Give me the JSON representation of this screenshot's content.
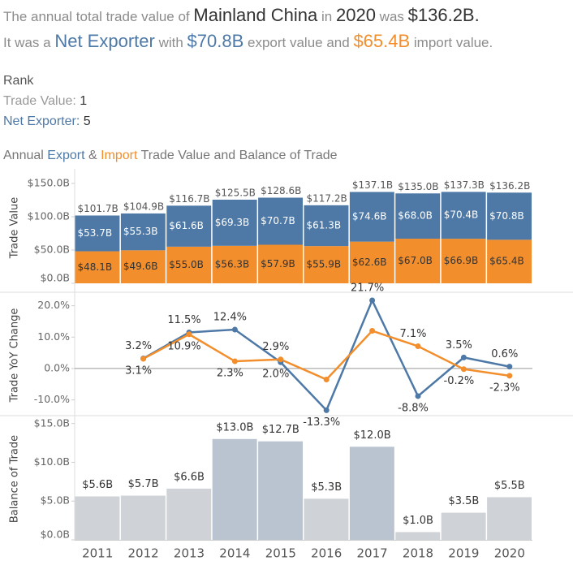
{
  "header": {
    "line1": [
      "The annual total trade value of",
      "Mainland China",
      "in",
      "2020",
      "was",
      "$136.2B."
    ],
    "line2": [
      "It was a",
      "Net Exporter",
      "with",
      "$70.8B",
      "export value and",
      "$65.4B",
      "import value."
    ]
  },
  "rank": {
    "title": "Rank",
    "items": [
      {
        "label": "Trade Value:",
        "value": "1"
      },
      {
        "label": "Net Exporter:",
        "value": "5"
      }
    ]
  },
  "chart_title": [
    "Annual",
    "Export",
    "&",
    "Import",
    "Trade Value and Balance of Trade"
  ],
  "chart_data": [
    {
      "type": "bar",
      "stacked": true,
      "y_label": "Trade Value",
      "ylim": [
        0,
        167
      ],
      "yticks": [
        {
          "value": 0,
          "label": "$0.0B"
        },
        {
          "value": 50,
          "label": "$50.0B"
        },
        {
          "value": 100,
          "label": "$100.0B"
        },
        {
          "value": 150,
          "label": "$150.0B"
        }
      ],
      "series": [
        {
          "color": "#f28e2b",
          "label_color": "#333333",
          "values": [
            48.1,
            49.6,
            55.0,
            56.3,
            57.9,
            55.9,
            62.6,
            67.0,
            66.9,
            65.4
          ],
          "value_labels": [
            "$48.1B",
            "$49.6B",
            "$55.0B",
            "$56.3B",
            "$57.9B",
            "$55.9B",
            "$62.6B",
            "$67.0B",
            "$66.9B",
            "$65.4B"
          ]
        },
        {
          "color": "#4e79a7",
          "label_color": "#ffffff",
          "values": [
            53.7,
            55.3,
            61.6,
            69.3,
            70.7,
            61.3,
            74.6,
            68.0,
            70.4,
            70.8
          ],
          "value_labels": [
            "$53.7B",
            "$55.3B",
            "$61.6B",
            "$69.3B",
            "$70.7B",
            "$61.3B",
            "$74.6B",
            "$68.0B",
            "$70.4B",
            "$70.8B"
          ]
        }
      ],
      "total_value_labels": [
        "$101.7B",
        "$104.9B",
        "$116.7B",
        "$125.5B",
        "$128.6B",
        "$117.2B",
        "$137.1B",
        "$135.0B",
        "$137.3B",
        "$136.2B"
      ]
    },
    {
      "type": "line",
      "y_label": "Trade YoY Change",
      "ylim": [
        -14.5,
        23
      ],
      "yticks": [
        {
          "value": -10,
          "label": "-10.0%"
        },
        {
          "value": 0,
          "label": "0.0%"
        },
        {
          "value": 10,
          "label": "10.0%"
        },
        {
          "value": 20,
          "label": "20.0%"
        }
      ],
      "series": [
        {
          "color": "#4e79a7",
          "values": [
            null,
            3.2,
            11.5,
            12.4,
            2.0,
            -13.3,
            21.7,
            -8.8,
            3.5,
            0.6
          ],
          "value_labels": [
            null,
            "3.2%",
            "11.5%",
            "12.4%",
            "2.0%",
            "-13.3%",
            "21.7%",
            "-8.8%",
            "3.5%",
            "0.6%"
          ]
        },
        {
          "color": "#f28e2b",
          "values": [
            null,
            3.1,
            10.9,
            2.3,
            2.9,
            -3.5,
            12.0,
            7.1,
            -0.2,
            -2.3
          ],
          "value_labels": [
            null,
            "3.1%",
            "10.9%",
            "2.3%",
            "2.9%",
            null,
            null,
            "7.1%",
            "-0.2%",
            "-2.3%"
          ]
        }
      ]
    },
    {
      "type": "bar",
      "y_label": "Balance of Trade",
      "categories": [
        "2011",
        "2012",
        "2013",
        "2014",
        "2015",
        "2016",
        "2017",
        "2018",
        "2019",
        "2020"
      ],
      "values": [
        5.6,
        5.7,
        6.6,
        13.0,
        12.7,
        5.3,
        12.0,
        1.0,
        3.5,
        5.5
      ],
      "value_labels": [
        "$5.6B",
        "$5.7B",
        "$6.6B",
        "$13.0B",
        "$12.7B",
        "$5.3B",
        "$12.0B",
        "$1.0B",
        "$3.5B",
        "$5.5B"
      ],
      "colors": [
        "#cfd2d6",
        "#cfd2d6",
        "#cfd2d6",
        "#b9c4d0",
        "#b9c4d0",
        "#cfd2d6",
        "#b9c4d0",
        "#cfd2d6",
        "#cfd2d6",
        "#cfd2d6"
      ],
      "ylim": [
        0,
        15.7
      ],
      "yticks": [
        {
          "value": 0,
          "label": "$0.0B"
        },
        {
          "value": 5,
          "label": "$5.0B"
        },
        {
          "value": 10,
          "label": "$10.0B"
        },
        {
          "value": 15,
          "label": "$15.0B"
        }
      ]
    }
  ]
}
